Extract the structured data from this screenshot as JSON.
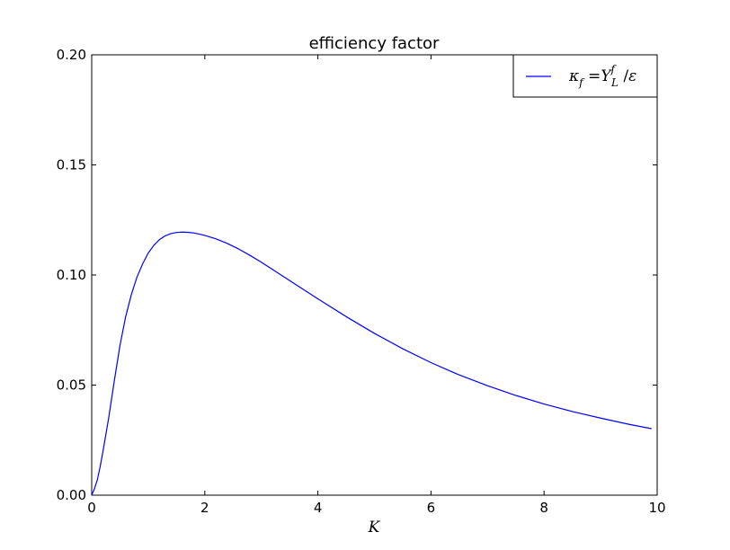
{
  "chart_data": {
    "type": "line",
    "title": "efficiency factor",
    "xlabel": "K",
    "ylabel": "",
    "xlim": [
      0,
      10
    ],
    "ylim": [
      0,
      0.2
    ],
    "xticks": [
      0,
      2,
      4,
      6,
      8,
      10
    ],
    "xtick_labels": [
      "0",
      "2",
      "4",
      "6",
      "8",
      "10"
    ],
    "yticks": [
      0,
      0.05,
      0.1,
      0.15,
      0.2
    ],
    "ytick_labels": [
      "0.00",
      "0.05",
      "0.10",
      "0.15",
      "0.20"
    ],
    "grid": false,
    "legend_position": "top-right",
    "series": [
      {
        "name": "κ_f = Y_L^f / ε",
        "color": "#0000ff",
        "x": [
          0.0,
          0.05,
          0.1,
          0.15,
          0.2,
          0.3,
          0.4,
          0.5,
          0.6,
          0.7,
          0.8,
          0.9,
          1.0,
          1.1,
          1.2,
          1.3,
          1.4,
          1.5,
          1.6,
          1.7,
          1.8,
          1.9,
          2.0,
          2.2,
          2.4,
          2.6,
          2.8,
          3.0,
          3.3,
          3.6,
          4.0,
          4.5,
          5.0,
          5.5,
          6.0,
          6.5,
          7.0,
          7.5,
          8.0,
          8.5,
          9.0,
          9.5,
          9.9
        ],
        "y": [
          0.0,
          0.003,
          0.007,
          0.013,
          0.02,
          0.035,
          0.052,
          0.068,
          0.081,
          0.091,
          0.099,
          0.105,
          0.11,
          0.1135,
          0.1161,
          0.1178,
          0.1188,
          0.1193,
          0.1195,
          0.1194,
          0.1191,
          0.1186,
          0.118,
          0.1164,
          0.1143,
          0.1118,
          0.1089,
          0.1058,
          0.1008,
          0.0958,
          0.0892,
          0.0811,
          0.0735,
          0.0665,
          0.0602,
          0.0546,
          0.0497,
          0.0453,
          0.0414,
          0.038,
          0.035,
          0.0322,
          0.0302
        ]
      }
    ]
  }
}
